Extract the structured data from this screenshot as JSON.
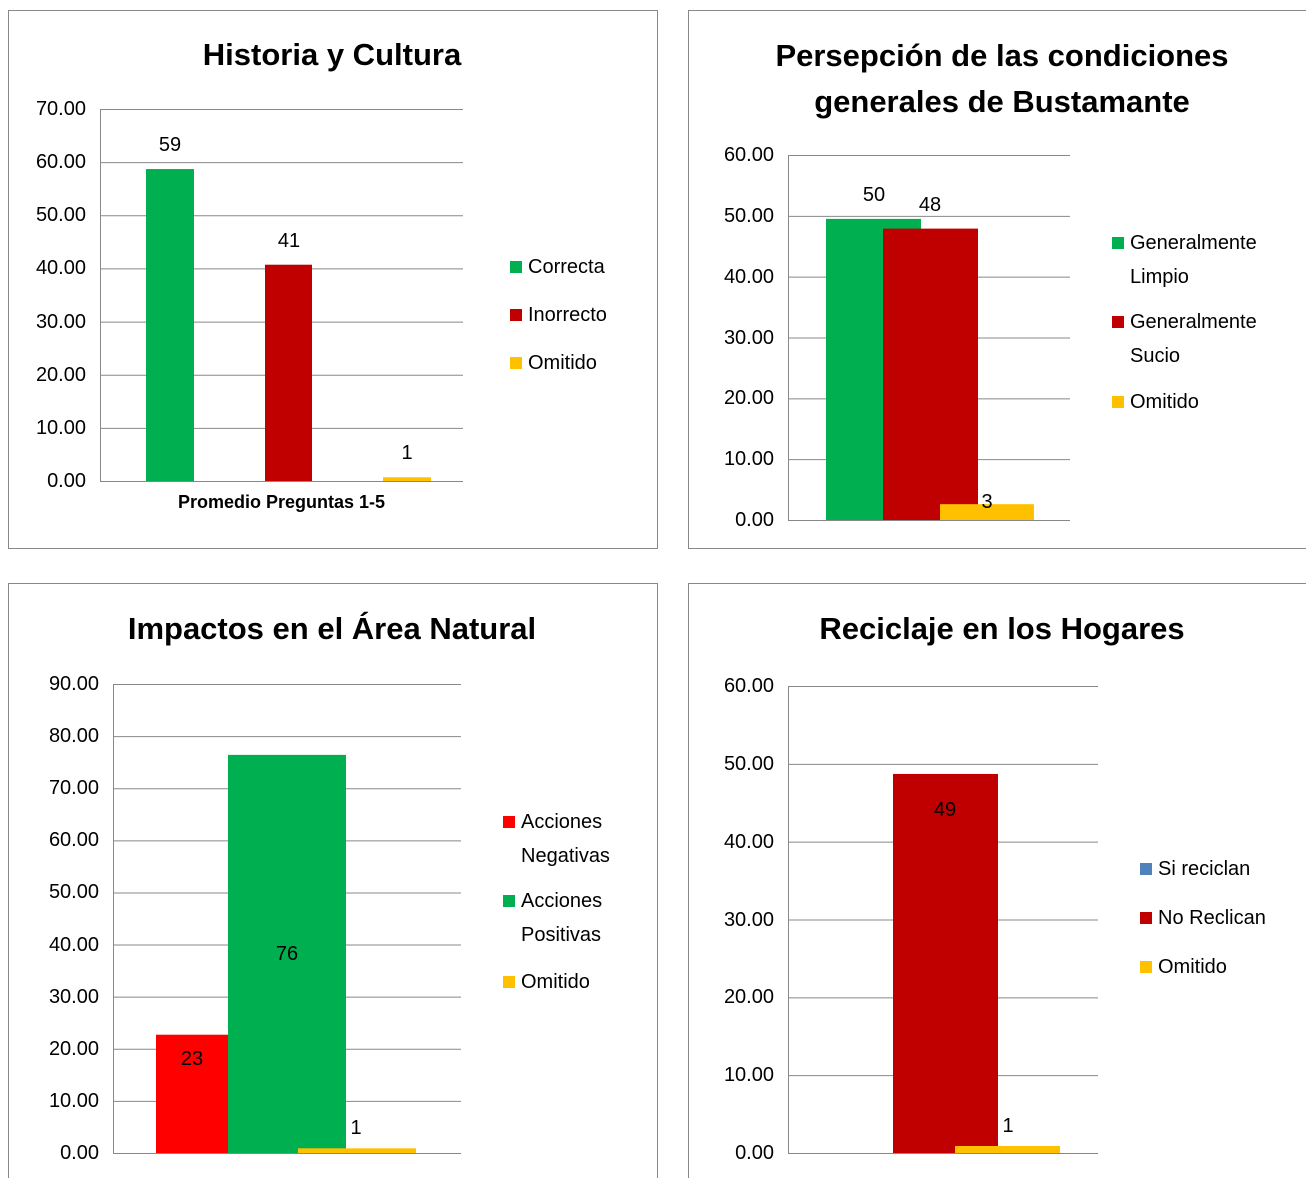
{
  "chart_data": [
    {
      "type": "bar",
      "title": "Historia y Cultura",
      "categories": [
        "Promedio Preguntas 1-5"
      ],
      "series": [
        {
          "name": "Correcta",
          "color": "#00b050",
          "values": [
            58.7
          ],
          "value_labels": [
            "59"
          ]
        },
        {
          "name": "Inorrecto",
          "color": "#c00000",
          "values": [
            40.7
          ],
          "value_labels": [
            "41"
          ]
        },
        {
          "name": "Omitido",
          "color": "#ffc000",
          "values": [
            0.7
          ],
          "value_labels": [
            "1"
          ]
        }
      ],
      "ylim": [
        0,
        70
      ],
      "yticks": [
        {
          "value": 0,
          "label": "0.00"
        },
        {
          "value": 10,
          "label": "10.00"
        },
        {
          "value": 20,
          "label": "20.00"
        },
        {
          "value": 30,
          "label": "30.00"
        },
        {
          "value": 40,
          "label": "40.00"
        },
        {
          "value": 50,
          "label": "50.00"
        },
        {
          "value": 60,
          "label": "60.00"
        },
        {
          "value": 70,
          "label": "70.00"
        }
      ],
      "grid": true,
      "legend": "right"
    },
    {
      "type": "bar",
      "title": "Persepción de las condiciones generales de Bustamante",
      "series": [
        {
          "name": "Generalmente Limpio",
          "color": "#00b050",
          "values": [
            49.5
          ],
          "value_labels": [
            "50"
          ]
        },
        {
          "name": "Generalmente Sucio",
          "color": "#c00000",
          "values": [
            47.9
          ],
          "value_labels": [
            "48"
          ]
        },
        {
          "name": "Omitido",
          "color": "#ffc000",
          "values": [
            2.6
          ],
          "value_labels": [
            "3"
          ]
        }
      ],
      "ylim": [
        0,
        60
      ],
      "yticks": [
        {
          "value": 0,
          "label": "0.00"
        },
        {
          "value": 10,
          "label": "10.00"
        },
        {
          "value": 20,
          "label": "20.00"
        },
        {
          "value": 30,
          "label": "30.00"
        },
        {
          "value": 40,
          "label": "40.00"
        },
        {
          "value": 50,
          "label": "50.00"
        },
        {
          "value": 60,
          "label": "60.00"
        }
      ],
      "grid": true,
      "legend": "right"
    },
    {
      "type": "bar",
      "title": "Impactos en el Área Natural",
      "series": [
        {
          "name": "Acciones Negativas",
          "color": "#ff0000",
          "values": [
            22.7
          ],
          "value_labels": [
            "23"
          ]
        },
        {
          "name": "Acciones Positivas",
          "color": "#00b050",
          "values": [
            76.4
          ],
          "value_labels": [
            "76"
          ]
        },
        {
          "name": "Omitido",
          "color": "#ffc000",
          "values": [
            0.9
          ],
          "value_labels": [
            "1"
          ]
        }
      ],
      "ylim": [
        0,
        90
      ],
      "yticks": [
        {
          "value": 0,
          "label": "0.00"
        },
        {
          "value": 10,
          "label": "10.00"
        },
        {
          "value": 20,
          "label": "20.00"
        },
        {
          "value": 30,
          "label": "30.00"
        },
        {
          "value": 40,
          "label": "40.00"
        },
        {
          "value": 50,
          "label": "50.00"
        },
        {
          "value": 60,
          "label": "60.00"
        },
        {
          "value": 70,
          "label": "70.00"
        },
        {
          "value": 80,
          "label": "80.00"
        },
        {
          "value": 90,
          "label": "90.00"
        }
      ],
      "grid": true,
      "legend": "right"
    },
    {
      "type": "bar",
      "title": "Reciclaje en  los Hogares",
      "series": [
        {
          "name": "Si reciclan",
          "color": "#4f81bd",
          "values": [
            null
          ],
          "value_labels": [
            null
          ]
        },
        {
          "name": "No Reclican",
          "color": "#c00000",
          "values": [
            48.7
          ],
          "value_labels": [
            "49"
          ]
        },
        {
          "name": "Omitido",
          "color": "#ffc000",
          "values": [
            0.9
          ],
          "value_labels": [
            "1"
          ]
        }
      ],
      "ylim": [
        0,
        60
      ],
      "yticks": [
        {
          "value": 0,
          "label": "0.00"
        },
        {
          "value": 10,
          "label": "10.00"
        },
        {
          "value": 20,
          "label": "20.00"
        },
        {
          "value": 30,
          "label": "30.00"
        },
        {
          "value": 40,
          "label": "40.00"
        },
        {
          "value": 50,
          "label": "50.00"
        },
        {
          "value": 60,
          "label": "60.00"
        }
      ],
      "grid": true,
      "legend": "right"
    }
  ]
}
